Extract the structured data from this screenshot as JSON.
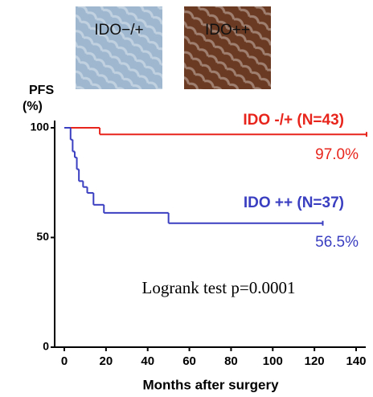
{
  "chart_data": {
    "type": "step",
    "y_label": "PFS",
    "y_unit": "(%)",
    "x_label": "Months after surgery",
    "annotation": "Logrank test p=0.0001",
    "panels": [
      {
        "label": "IDO−/+",
        "color": "#9fb8d0"
      },
      {
        "label": "IDO++",
        "color": "#6b3a22"
      }
    ],
    "xlim": [
      0,
      140
    ],
    "xticks": [
      0,
      20,
      40,
      60,
      80,
      100,
      120,
      140
    ],
    "ylim": [
      0,
      100
    ],
    "yticks": [
      0,
      50,
      100
    ],
    "series": [
      {
        "name": "IDO -/+ (N=43)",
        "color": "#e8251c",
        "x": [
          0,
          17,
          145
        ],
        "values": [
          100,
          97,
          97
        ],
        "value_labels": [
          null,
          null,
          "97.0%"
        ]
      },
      {
        "name": "IDO ++ (N=37)",
        "color": "#3a3ec0",
        "x": [
          0,
          3,
          4,
          5,
          6,
          7,
          9,
          11,
          14,
          19,
          50,
          124
        ],
        "values": [
          100,
          94.6,
          89.2,
          86.5,
          81.1,
          75.7,
          73,
          70.3,
          64.9,
          61.2,
          56.5,
          56.5
        ],
        "value_labels": [
          null,
          null,
          null,
          null,
          null,
          null,
          null,
          null,
          null,
          null,
          null,
          "56.5%"
        ]
      }
    ]
  }
}
